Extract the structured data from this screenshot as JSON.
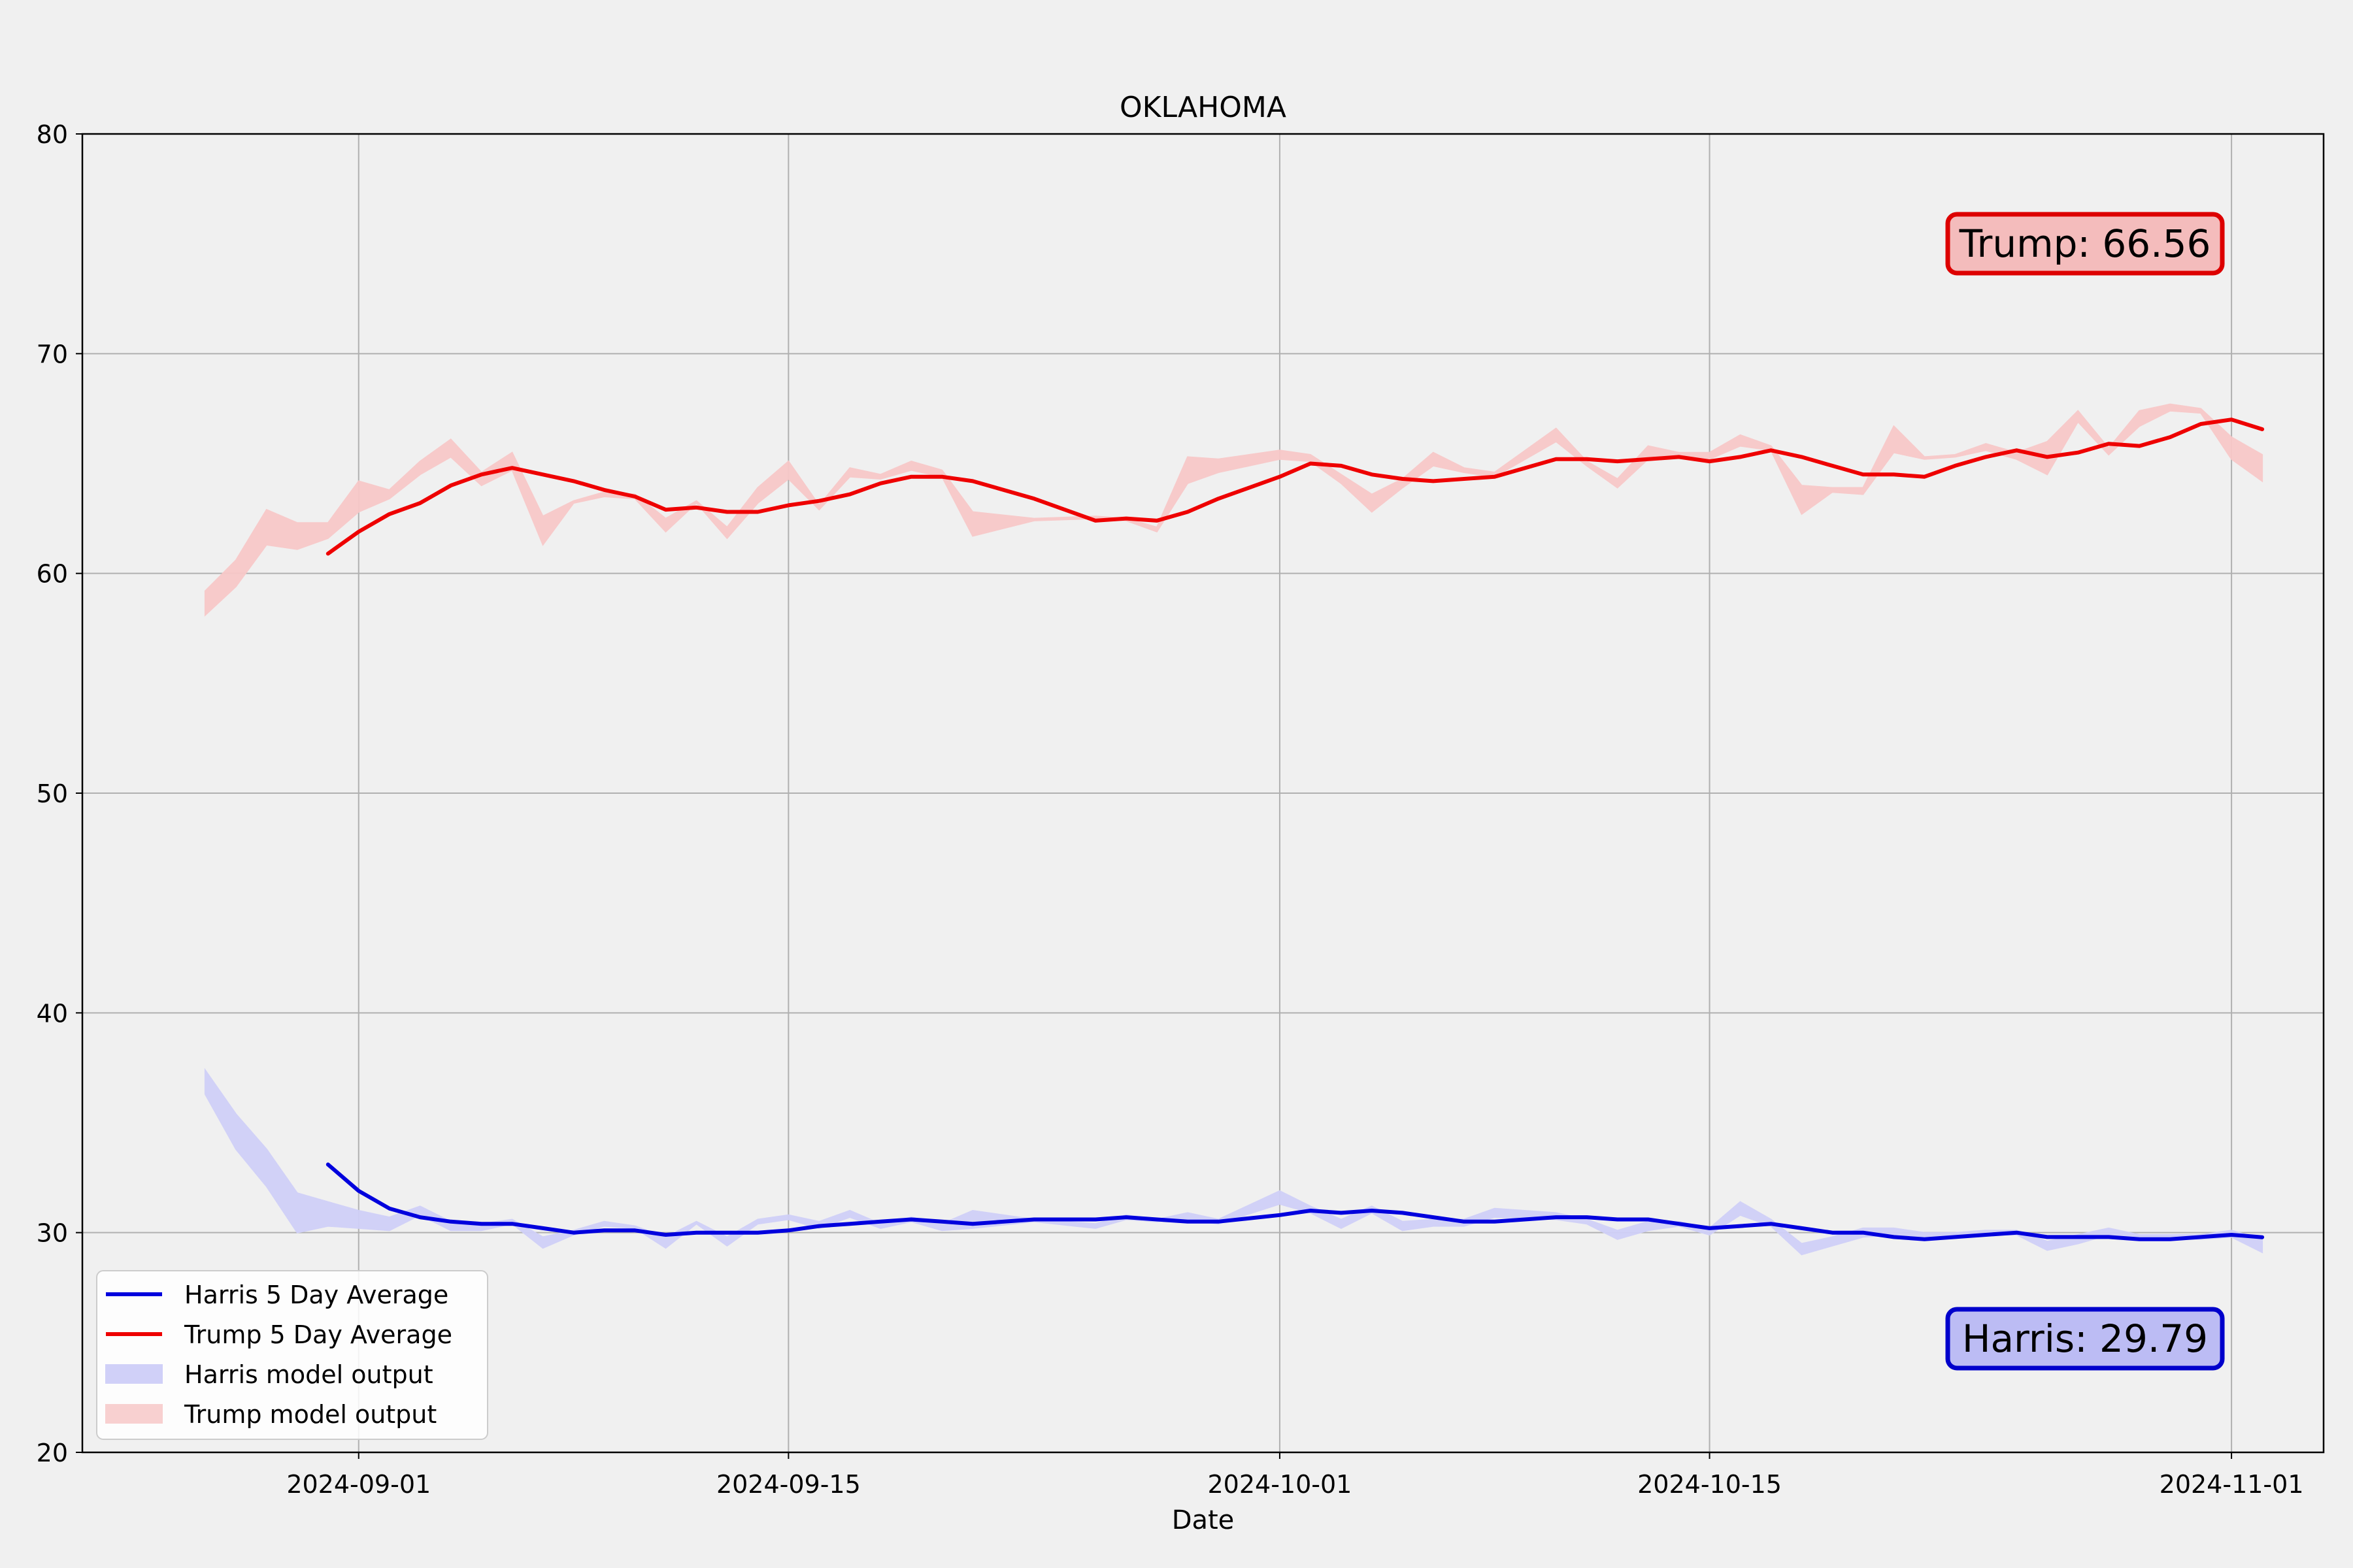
{
  "chart_data": {
    "type": "line",
    "title": "OKLAHOMA",
    "xlabel": "Date",
    "ylabel": "",
    "ylim": [
      20,
      80
    ],
    "xlim": [
      "2024-08-23",
      "2024-11-04"
    ],
    "yticks": [
      20,
      30,
      40,
      50,
      60,
      70,
      80
    ],
    "xticks": [
      "2024-09-01",
      "2024-09-15",
      "2024-10-01",
      "2024-10-15",
      "2024-11-01"
    ],
    "grid": true,
    "legend_position": "lower-left",
    "legend": [
      {
        "label": "Harris 5 Day Average",
        "kind": "line",
        "color": "#0000dd"
      },
      {
        "label": "Trump 5 Day Average",
        "kind": "line",
        "color": "#ee0000"
      },
      {
        "label": "Harris model output",
        "kind": "band",
        "color": "#d0d0f8"
      },
      {
        "label": "Trump model output",
        "kind": "band",
        "color": "#f8d0d0"
      }
    ],
    "annotations": [
      {
        "text": "Trump: 66.56",
        "position": "top-right",
        "face": "#f4bcbc",
        "edge": "#dd0000"
      },
      {
        "text": "Harris: 29.79",
        "position": "bottom-right",
        "face": "#bcbcf4",
        "edge": "#0000cc"
      }
    ],
    "series": [
      {
        "name": "Trump 5 Day Average",
        "color": "#ee0000",
        "x": [
          "2024-08-31",
          "2024-09-01",
          "2024-09-02",
          "2024-09-03",
          "2024-09-04",
          "2024-09-05",
          "2024-09-06",
          "2024-09-07",
          "2024-09-08",
          "2024-09-09",
          "2024-09-10",
          "2024-09-11",
          "2024-09-12",
          "2024-09-13",
          "2024-09-14",
          "2024-09-15",
          "2024-09-16",
          "2024-09-17",
          "2024-09-18",
          "2024-09-19",
          "2024-09-20",
          "2024-09-21",
          "2024-09-23",
          "2024-09-25",
          "2024-09-26",
          "2024-09-27",
          "2024-09-28",
          "2024-09-29",
          "2024-10-01",
          "2024-10-02",
          "2024-10-03",
          "2024-10-04",
          "2024-10-05",
          "2024-10-06",
          "2024-10-07",
          "2024-10-08",
          "2024-10-10",
          "2024-10-11",
          "2024-10-12",
          "2024-10-13",
          "2024-10-14",
          "2024-10-15",
          "2024-10-16",
          "2024-10-17",
          "2024-10-18",
          "2024-10-19",
          "2024-10-20",
          "2024-10-21",
          "2024-10-22",
          "2024-10-23",
          "2024-10-24",
          "2024-10-25",
          "2024-10-26",
          "2024-10-27",
          "2024-10-28",
          "2024-10-29",
          "2024-10-30",
          "2024-10-31",
          "2024-11-01",
          "2024-11-02"
        ],
        "values": [
          60.9,
          61.9,
          62.7,
          63.2,
          64.0,
          64.5,
          64.8,
          64.5,
          64.2,
          63.8,
          63.5,
          62.9,
          63.0,
          62.8,
          62.8,
          63.1,
          63.3,
          63.6,
          64.1,
          64.4,
          64.4,
          64.2,
          63.4,
          62.4,
          62.5,
          62.4,
          62.8,
          63.4,
          64.4,
          65.0,
          64.9,
          64.5,
          64.3,
          64.2,
          64.3,
          64.4,
          65.2,
          65.2,
          65.1,
          65.2,
          65.3,
          65.1,
          65.3,
          65.6,
          65.3,
          64.9,
          64.5,
          64.5,
          64.4,
          64.9,
          65.3,
          65.6,
          65.3,
          65.5,
          65.9,
          65.8,
          66.2,
          66.8,
          67.0,
          66.56
        ]
      },
      {
        "name": "Harris 5 Day Average",
        "color": "#0000dd",
        "x": [
          "2024-08-31",
          "2024-09-01",
          "2024-09-02",
          "2024-09-03",
          "2024-09-04",
          "2024-09-05",
          "2024-09-06",
          "2024-09-07",
          "2024-09-08",
          "2024-09-09",
          "2024-09-10",
          "2024-09-11",
          "2024-09-12",
          "2024-09-13",
          "2024-09-14",
          "2024-09-15",
          "2024-09-16",
          "2024-09-17",
          "2024-09-18",
          "2024-09-19",
          "2024-09-20",
          "2024-09-21",
          "2024-09-23",
          "2024-09-25",
          "2024-09-26",
          "2024-09-27",
          "2024-09-28",
          "2024-09-29",
          "2024-10-01",
          "2024-10-02",
          "2024-10-03",
          "2024-10-04",
          "2024-10-05",
          "2024-10-06",
          "2024-10-07",
          "2024-10-08",
          "2024-10-10",
          "2024-10-11",
          "2024-10-12",
          "2024-10-13",
          "2024-10-14",
          "2024-10-15",
          "2024-10-16",
          "2024-10-17",
          "2024-10-18",
          "2024-10-19",
          "2024-10-20",
          "2024-10-21",
          "2024-10-22",
          "2024-10-23",
          "2024-10-24",
          "2024-10-25",
          "2024-10-26",
          "2024-10-27",
          "2024-10-28",
          "2024-10-29",
          "2024-10-30",
          "2024-10-31",
          "2024-11-01",
          "2024-11-02"
        ],
        "values": [
          33.1,
          31.9,
          31.1,
          30.7,
          30.5,
          30.4,
          30.4,
          30.2,
          30.0,
          30.1,
          30.1,
          29.9,
          30.0,
          30.0,
          30.0,
          30.1,
          30.3,
          30.4,
          30.5,
          30.6,
          30.5,
          30.4,
          30.6,
          30.6,
          30.7,
          30.6,
          30.5,
          30.5,
          30.8,
          31.0,
          30.9,
          31.0,
          30.9,
          30.7,
          30.5,
          30.5,
          30.7,
          30.7,
          30.6,
          30.6,
          30.4,
          30.2,
          30.3,
          30.4,
          30.2,
          30.0,
          30.0,
          29.8,
          29.7,
          29.8,
          29.9,
          30.0,
          29.8,
          29.8,
          29.8,
          29.7,
          29.7,
          29.8,
          29.9,
          29.79
        ]
      }
    ],
    "bands": [
      {
        "name": "Trump model output",
        "color": "#f8c8c8",
        "x": [
          "2024-08-27",
          "2024-08-28",
          "2024-08-29",
          "2024-08-30",
          "2024-08-31",
          "2024-09-01",
          "2024-09-02",
          "2024-09-03",
          "2024-09-04",
          "2024-09-05",
          "2024-09-06",
          "2024-09-07",
          "2024-09-08",
          "2024-09-09",
          "2024-09-10",
          "2024-09-11",
          "2024-09-12",
          "2024-09-13",
          "2024-09-14",
          "2024-09-15",
          "2024-09-16",
          "2024-09-17",
          "2024-09-18",
          "2024-09-19",
          "2024-09-20",
          "2024-09-21",
          "2024-09-23",
          "2024-09-25",
          "2024-09-26",
          "2024-09-27",
          "2024-09-28",
          "2024-09-29",
          "2024-10-01",
          "2024-10-02",
          "2024-10-03",
          "2024-10-04",
          "2024-10-05",
          "2024-10-06",
          "2024-10-07",
          "2024-10-08",
          "2024-10-10",
          "2024-10-11",
          "2024-10-12",
          "2024-10-13",
          "2024-10-14",
          "2024-10-15",
          "2024-10-16",
          "2024-10-17",
          "2024-10-18",
          "2024-10-19",
          "2024-10-20",
          "2024-10-21",
          "2024-10-22",
          "2024-10-23",
          "2024-10-24",
          "2024-10-25",
          "2024-10-26",
          "2024-10-27",
          "2024-10-28",
          "2024-10-29",
          "2024-10-30",
          "2024-10-31",
          "2024-11-01",
          "2024-11-02"
        ],
        "upper": [
          59.2,
          60.6,
          62.9,
          62.3,
          62.3,
          64.2,
          63.8,
          65.1,
          66.1,
          64.6,
          65.5,
          62.6,
          63.3,
          63.7,
          63.6,
          62.5,
          63.3,
          62.1,
          63.9,
          65.1,
          63.1,
          64.8,
          64.5,
          65.1,
          64.7,
          62.8,
          62.5,
          62.6,
          62.5,
          62.1,
          65.3,
          65.2,
          65.6,
          65.4,
          64.5,
          63.6,
          64.3,
          65.5,
          64.8,
          64.6,
          66.6,
          65.1,
          64.3,
          65.8,
          65.5,
          65.5,
          66.3,
          65.8,
          64.0,
          63.9,
          63.9,
          66.7,
          65.3,
          65.4,
          65.9,
          65.5,
          66.0,
          67.4,
          65.7,
          67.4,
          67.7,
          67.5,
          66.2,
          65.4
        ],
        "lower": [
          58.1,
          59.4,
          61.3,
          61.1,
          61.6,
          62.8,
          63.4,
          64.5,
          65.3,
          64.0,
          64.7,
          61.3,
          63.2,
          63.5,
          63.4,
          61.9,
          63.2,
          61.6,
          63.2,
          64.3,
          62.9,
          64.4,
          64.3,
          64.7,
          64.4,
          61.7,
          62.4,
          62.5,
          62.4,
          61.9,
          64.1,
          64.6,
          65.2,
          65.1,
          64.1,
          62.8,
          63.9,
          64.9,
          64.6,
          64.4,
          66.0,
          64.9,
          63.9,
          65.2,
          65.4,
          65.2,
          65.8,
          65.6,
          62.7,
          63.7,
          63.6,
          65.5,
          65.2,
          65.3,
          65.6,
          65.2,
          64.5,
          66.9,
          65.4,
          66.7,
          67.4,
          67.3,
          65.2,
          64.2
        ]
      },
      {
        "name": "Harris model output",
        "color": "#d0d0f8",
        "x": [
          "2024-08-27",
          "2024-08-28",
          "2024-08-29",
          "2024-08-30",
          "2024-08-31",
          "2024-09-01",
          "2024-09-02",
          "2024-09-03",
          "2024-09-04",
          "2024-09-05",
          "2024-09-06",
          "2024-09-07",
          "2024-09-08",
          "2024-09-09",
          "2024-09-10",
          "2024-09-11",
          "2024-09-12",
          "2024-09-13",
          "2024-09-14",
          "2024-09-15",
          "2024-09-16",
          "2024-09-17",
          "2024-09-18",
          "2024-09-19",
          "2024-09-20",
          "2024-09-21",
          "2024-09-23",
          "2024-09-25",
          "2024-09-26",
          "2024-09-27",
          "2024-09-28",
          "2024-09-29",
          "2024-10-01",
          "2024-10-02",
          "2024-10-03",
          "2024-10-04",
          "2024-10-05",
          "2024-10-06",
          "2024-10-07",
          "2024-10-08",
          "2024-10-10",
          "2024-10-11",
          "2024-10-12",
          "2024-10-13",
          "2024-10-14",
          "2024-10-15",
          "2024-10-16",
          "2024-10-17",
          "2024-10-18",
          "2024-10-19",
          "2024-10-20",
          "2024-10-21",
          "2024-10-22",
          "2024-10-23",
          "2024-10-24",
          "2024-10-25",
          "2024-10-26",
          "2024-10-27",
          "2024-10-28",
          "2024-10-29",
          "2024-10-30",
          "2024-10-31",
          "2024-11-01",
          "2024-11-02"
        ],
        "upper": [
          37.4,
          35.4,
          33.8,
          31.8,
          31.4,
          31.0,
          30.7,
          31.2,
          30.5,
          30.4,
          30.6,
          29.8,
          30.1,
          30.5,
          30.3,
          29.8,
          30.5,
          29.8,
          30.6,
          30.8,
          30.5,
          31.0,
          30.4,
          30.7,
          30.4,
          31.0,
          30.6,
          30.4,
          30.8,
          30.6,
          30.9,
          30.6,
          31.9,
          31.2,
          30.6,
          31.2,
          30.5,
          30.6,
          30.6,
          31.1,
          30.9,
          30.6,
          30.1,
          30.5,
          30.5,
          30.2,
          31.4,
          30.6,
          29.5,
          29.8,
          30.2,
          30.2,
          30.0,
          30.0,
          30.1,
          30.1,
          29.6,
          29.9,
          30.2,
          29.9,
          29.9,
          29.9,
          30.1,
          29.7
        ],
        "lower": [
          36.3,
          33.8,
          32.1,
          30.0,
          30.3,
          30.2,
          30.1,
          30.8,
          30.1,
          30.1,
          30.4,
          29.3,
          29.9,
          30.3,
          30.2,
          29.3,
          30.4,
          29.4,
          30.4,
          30.6,
          30.2,
          30.7,
          30.2,
          30.5,
          30.1,
          30.2,
          30.5,
          30.2,
          30.6,
          30.5,
          30.6,
          30.4,
          31.3,
          30.9,
          30.2,
          30.9,
          30.1,
          30.3,
          30.3,
          30.7,
          30.6,
          30.4,
          29.7,
          30.1,
          30.3,
          29.9,
          30.8,
          30.3,
          29.0,
          29.4,
          29.8,
          29.9,
          29.8,
          29.8,
          29.9,
          29.9,
          29.2,
          29.5,
          29.9,
          29.7,
          29.7,
          29.7,
          29.8,
          29.1
        ]
      }
    ]
  }
}
